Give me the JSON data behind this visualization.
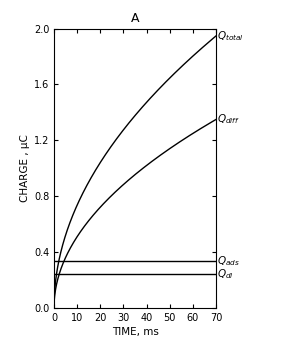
{
  "title": "A",
  "xlabel": "TIME, ms",
  "ylabel": "CHARGE , μC",
  "xlim": [
    0,
    70
  ],
  "ylim": [
    0,
    2.0
  ],
  "xticks": [
    0,
    10,
    20,
    30,
    40,
    50,
    60,
    70
  ],
  "yticks": [
    0,
    0.4,
    0.8,
    1.2,
    1.6,
    2.0
  ],
  "Q_ads_value": 0.335,
  "Q_dl_value": 0.245,
  "Q_total_coeff": 0.2328,
  "Q_diff_coeff": 0.1613,
  "line_color": "#000000",
  "bg_color": "#ffffff",
  "figsize": [
    3.0,
    3.58
  ],
  "dpi": 100
}
